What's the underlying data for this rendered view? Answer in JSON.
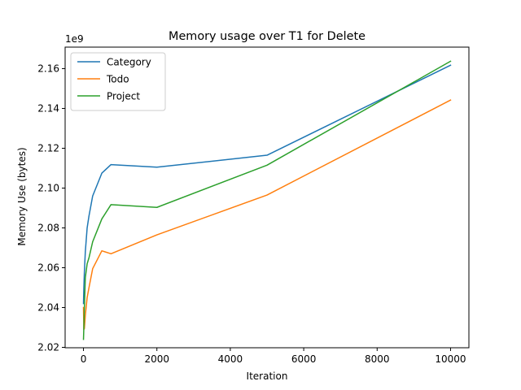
{
  "chart_data": {
    "type": "line",
    "title": "Memory usage over T1 for Delete",
    "xlabel": "Iteration",
    "ylabel": "Memory Use (bytes)",
    "y_offset_label": "1e9",
    "y_scale_note": "values in units of 1e9 bytes",
    "xlim": [
      -500,
      10500
    ],
    "ylim": [
      2.0198,
      2.1708
    ],
    "x_ticks": [
      0,
      2000,
      4000,
      6000,
      8000,
      10000
    ],
    "y_ticks": [
      2.02,
      2.04,
      2.06,
      2.08,
      2.1,
      2.12,
      2.14,
      2.16
    ],
    "legend_position": "upper-left",
    "grid": false,
    "series": [
      {
        "name": "Category",
        "color": "#1f77b4",
        "x": [
          0,
          10,
          25,
          50,
          100,
          150,
          250,
          500,
          750,
          2000,
          5000,
          10000
        ],
        "y": [
          2.042,
          2.05,
          2.058,
          2.068,
          2.08,
          2.086,
          2.096,
          2.1075,
          2.1118,
          2.1105,
          2.1165,
          2.1617
        ]
      },
      {
        "name": "Todo",
        "color": "#ff7f0e",
        "x": [
          0,
          10,
          25,
          50,
          100,
          150,
          250,
          500,
          750,
          2000,
          5000,
          10000
        ],
        "y": [
          2.04,
          2.029,
          2.0295,
          2.036,
          2.045,
          2.05,
          2.0595,
          2.0685,
          2.067,
          2.0765,
          2.0965,
          2.1442
        ]
      },
      {
        "name": "Project",
        "color": "#2ca02c",
        "x": [
          0,
          10,
          25,
          50,
          100,
          150,
          250,
          500,
          750,
          2000,
          5000,
          10000
        ],
        "y": [
          2.024,
          2.03,
          2.04,
          2.055,
          2.062,
          2.065,
          2.073,
          2.0845,
          2.0917,
          2.0903,
          2.1115,
          2.1637
        ]
      }
    ]
  }
}
